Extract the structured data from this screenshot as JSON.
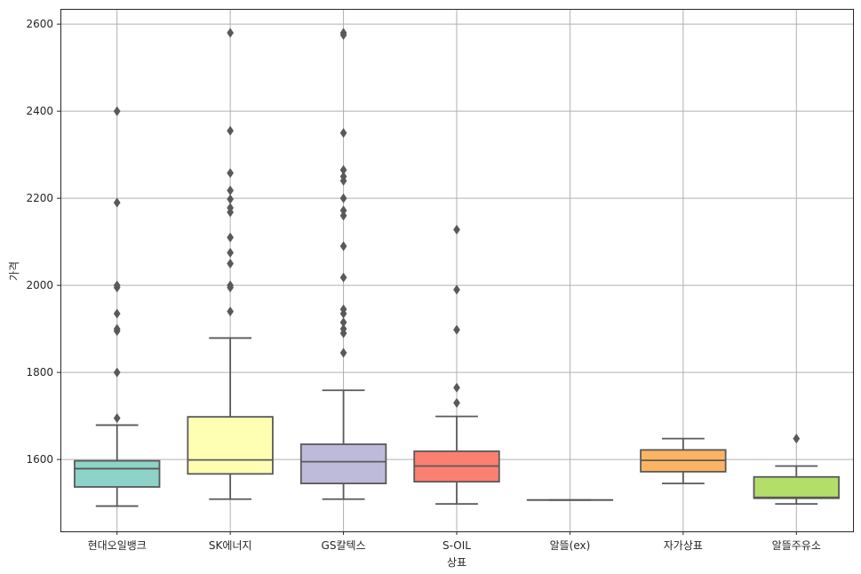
{
  "chart_data": {
    "type": "box",
    "xlabel": "상표",
    "ylabel": "가격",
    "ylim": [
      1435,
      2635
    ],
    "y_ticks": [
      1600,
      1800,
      2000,
      2200,
      2400,
      2600
    ],
    "grid": true,
    "categories": [
      "현대오일뱅크",
      "SK에너지",
      "GS칼텍스",
      "S-OIL",
      "알뜰(ex)",
      "자가상표",
      "알뜰주유소"
    ],
    "boxes": [
      {
        "category": "현대오일뱅크",
        "color": "#8dd3c7",
        "whisker_low": 1493,
        "q1": 1537,
        "median": 1579,
        "q3": 1597,
        "whisker_high": 1679,
        "outliers": [
          1695,
          1800,
          1895,
          1900,
          1935,
          1995,
          2000,
          2190,
          2400
        ]
      },
      {
        "category": "SK에너지",
        "color": "#ffffb3",
        "whisker_low": 1509,
        "q1": 1567,
        "median": 1599,
        "q3": 1698,
        "whisker_high": 1879,
        "outliers": [
          1940,
          1995,
          2000,
          2050,
          2075,
          2110,
          2168,
          2178,
          2198,
          2218,
          2258,
          2355,
          2580
        ]
      },
      {
        "category": "GS칼텍스",
        "color": "#bebada",
        "whisker_low": 1509,
        "q1": 1545,
        "median": 1595,
        "q3": 1635,
        "whisker_high": 1759,
        "outliers": [
          1845,
          1890,
          1900,
          1915,
          1935,
          1945,
          2018,
          2090,
          2160,
          2172,
          2200,
          2240,
          2250,
          2265,
          2350,
          2575,
          2580
        ]
      },
      {
        "category": "S-OIL",
        "color": "#fb8072",
        "whisker_low": 1498,
        "q1": 1549,
        "median": 1585,
        "q3": 1619,
        "whisker_high": 1699,
        "outliers": [
          1730,
          1765,
          1898,
          1990,
          2128
        ]
      },
      {
        "category": "알뜰(ex)",
        "color": "#80b1d3",
        "whisker_low": 1507,
        "q1": 1507,
        "median": 1507,
        "q3": 1507,
        "whisker_high": 1507,
        "outliers": []
      },
      {
        "category": "자가상표",
        "color": "#fdb462",
        "whisker_low": 1545,
        "q1": 1572,
        "median": 1598,
        "q3": 1622,
        "whisker_high": 1648,
        "outliers": []
      },
      {
        "category": "알뜰주유소",
        "color": "#b3de69",
        "whisker_low": 1498,
        "q1": 1511,
        "median": 1513,
        "q3": 1560,
        "whisker_high": 1585,
        "outliers": [
          1648
        ]
      }
    ]
  }
}
